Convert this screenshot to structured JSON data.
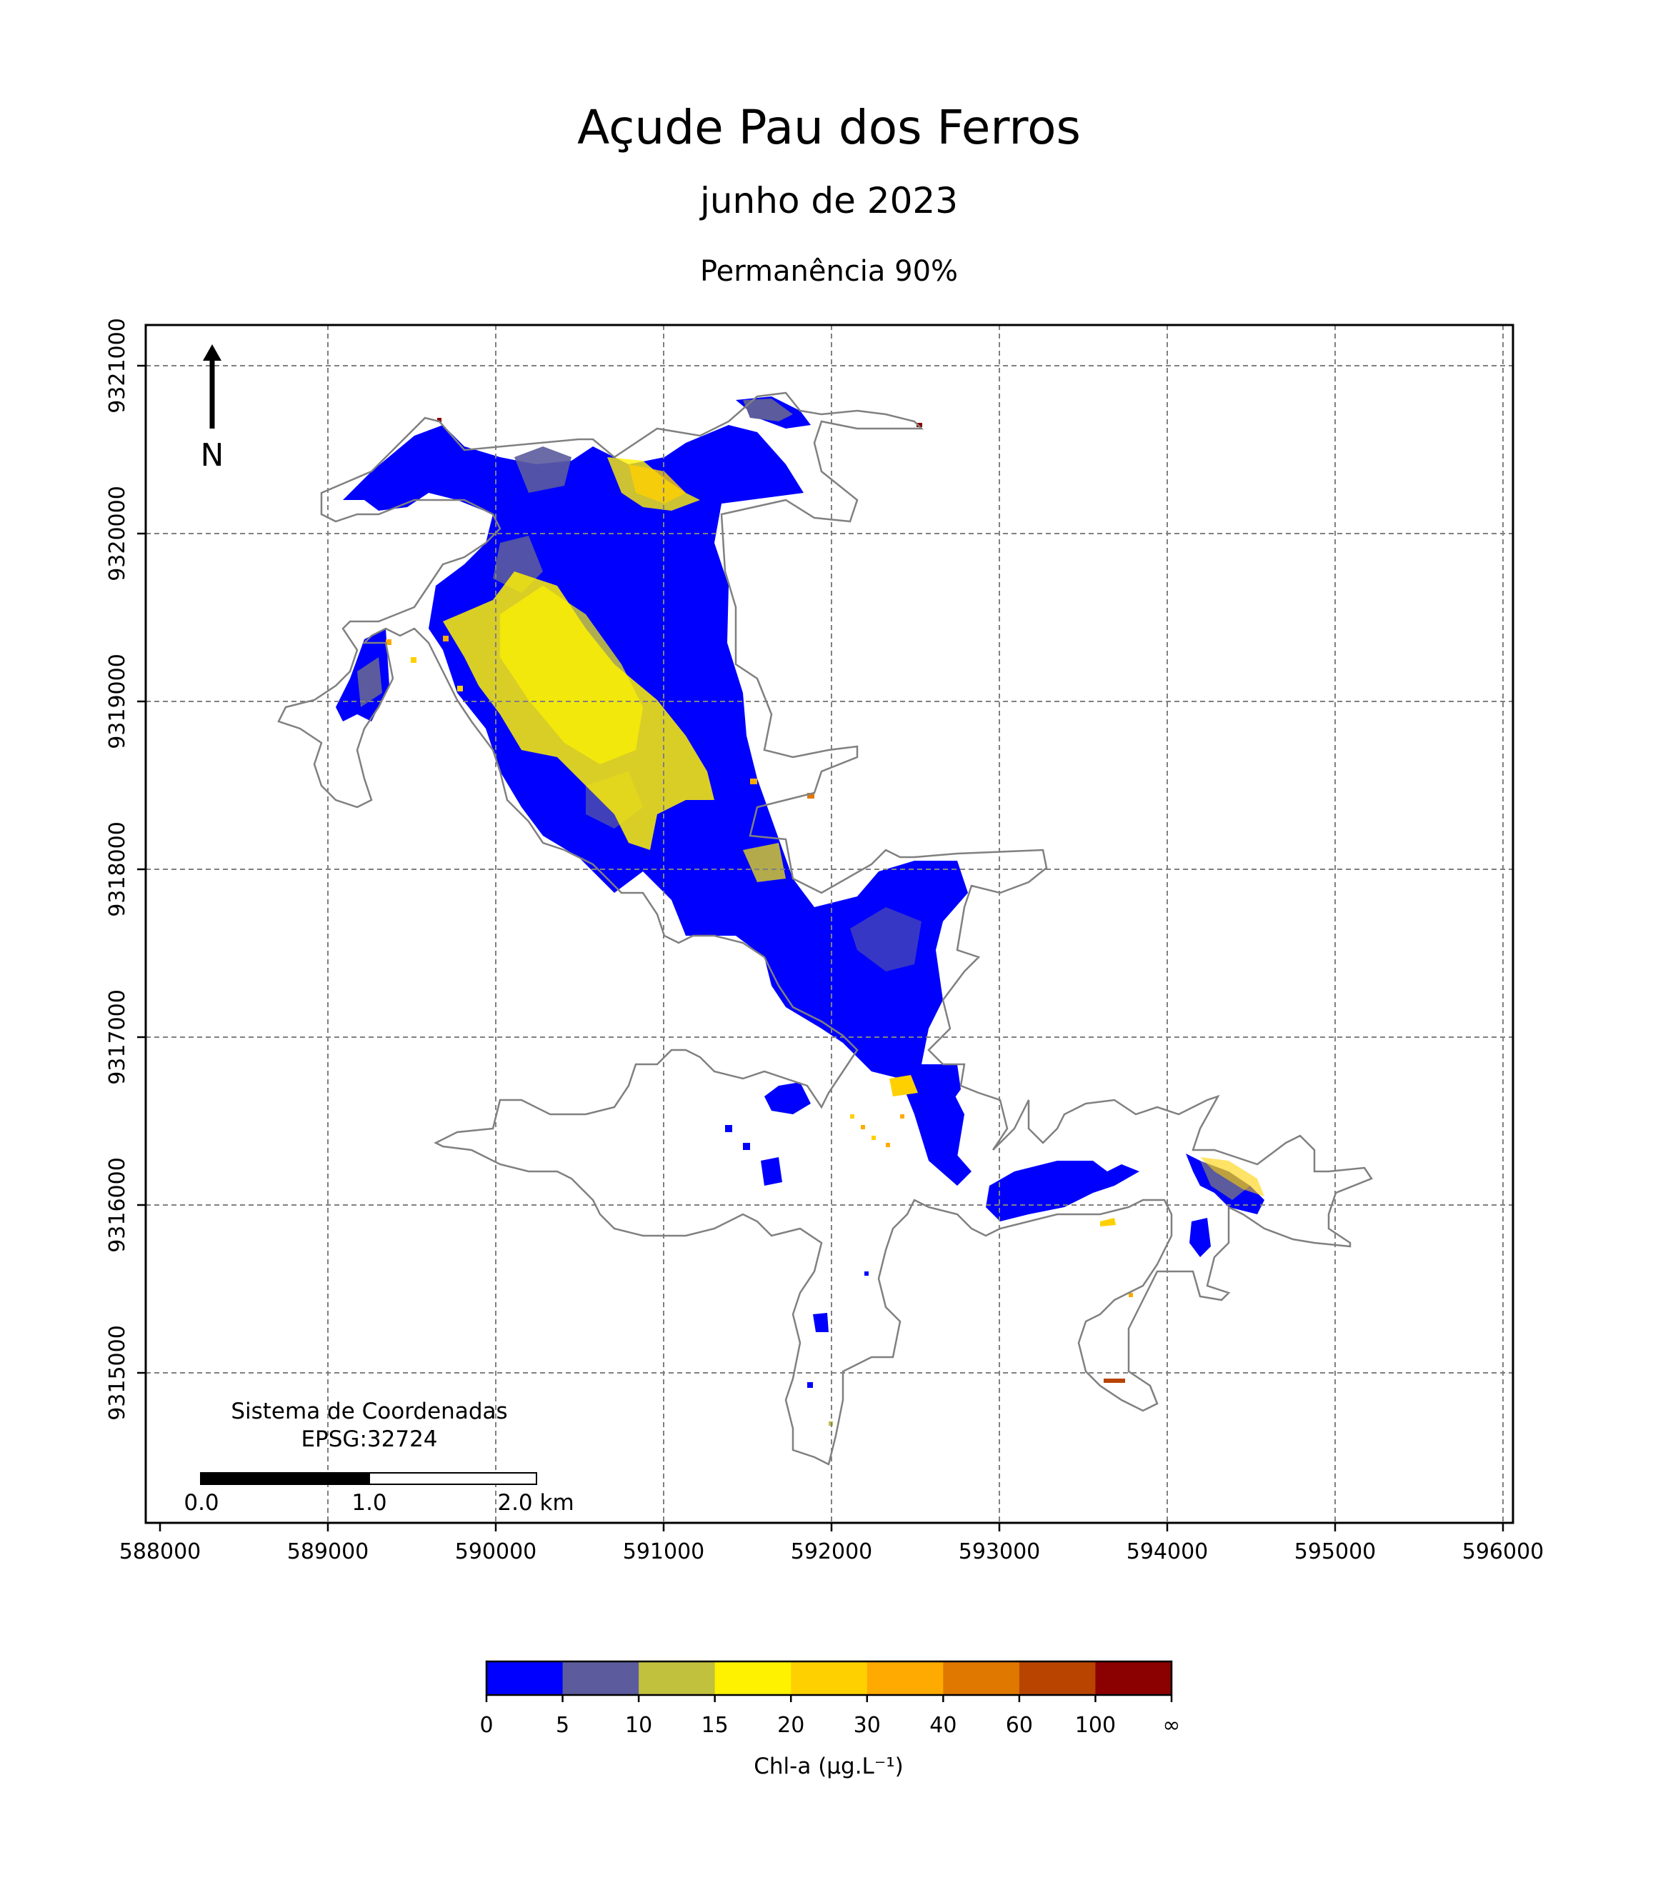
{
  "title": "Açude Pau dos Ferros",
  "subtitle": "junho de 2023",
  "subsubtitle": "Permanência 90%",
  "north_label": "N",
  "crs_text": [
    "Sistema de Coordenadas",
    "EPSG:32724"
  ],
  "scale_bar": {
    "labels": [
      "0.0",
      "1.0",
      "2.0 km"
    ]
  },
  "x_ticks": [
    "588000",
    "589000",
    "590000",
    "591000",
    "592000",
    "593000",
    "594000",
    "595000",
    "596000"
  ],
  "y_ticks": [
    "9321000",
    "9320000",
    "9319000",
    "9318000",
    "9317000",
    "9316000",
    "9315000"
  ],
  "colorbar": {
    "label": "Chl-a (μg.L⁻¹)",
    "tick_labels": [
      "0",
      "5",
      "10",
      "15",
      "20",
      "30",
      "40",
      "60",
      "100",
      "∞"
    ],
    "colors": [
      "#0000ff",
      "#5b5b9e",
      "#c1c13e",
      "#fff200",
      "#ffd000",
      "#ffaa00",
      "#e07800",
      "#b84400",
      "#8b0000"
    ]
  },
  "colors": {
    "water_low": "#0000ff",
    "shoreline": "#808080",
    "grid": "#808080"
  }
}
